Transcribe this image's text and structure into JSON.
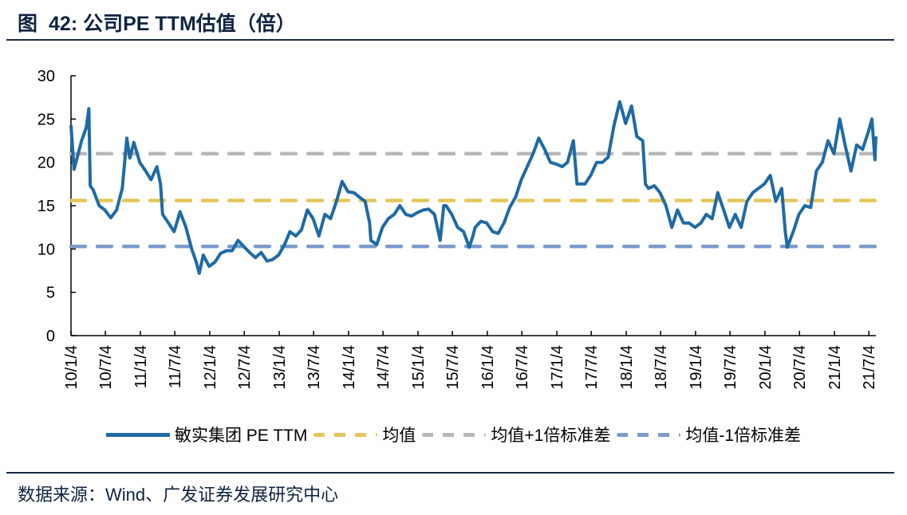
{
  "title": {
    "prefix": "图",
    "number": "42:",
    "text": "公司PE TTM估值（倍）"
  },
  "source": "数据来源：Wind、广发证券发展研究中心",
  "colors": {
    "pe": "#1f6aa5",
    "mean": "#e6c65a",
    "plus1": "#b8b8b8",
    "minus1": "#7b9bcb",
    "text": "#0f2340"
  },
  "chart_data": {
    "type": "line",
    "title": "公司PE TTM估值（倍）",
    "xlabel": "",
    "ylabel": "",
    "ylim": [
      0,
      30
    ],
    "yticks": [
      0,
      5,
      10,
      15,
      20,
      25,
      30
    ],
    "xlim": [
      "2010-01-04",
      "2021-08-10"
    ],
    "xticks": [
      {
        "date": "2010-01-04",
        "label": "10/1/4"
      },
      {
        "date": "2010-07-04",
        "label": "10/7/4"
      },
      {
        "date": "2011-01-04",
        "label": "11/1/4"
      },
      {
        "date": "2011-07-04",
        "label": "11/7/4"
      },
      {
        "date": "2012-01-04",
        "label": "12/1/4"
      },
      {
        "date": "2012-07-04",
        "label": "12/7/4"
      },
      {
        "date": "2013-01-04",
        "label": "13/1/4"
      },
      {
        "date": "2013-07-04",
        "label": "13/7/4"
      },
      {
        "date": "2014-01-04",
        "label": "14/1/4"
      },
      {
        "date": "2014-07-04",
        "label": "14/7/4"
      },
      {
        "date": "2015-01-04",
        "label": "15/1/4"
      },
      {
        "date": "2015-07-04",
        "label": "15/7/4"
      },
      {
        "date": "2016-01-04",
        "label": "16/1/4"
      },
      {
        "date": "2016-07-04",
        "label": "16/7/4"
      },
      {
        "date": "2017-01-04",
        "label": "17/1/4"
      },
      {
        "date": "2017-07-04",
        "label": "17/7/4"
      },
      {
        "date": "2018-01-04",
        "label": "18/1/4"
      },
      {
        "date": "2018-07-04",
        "label": "18/7/4"
      },
      {
        "date": "2019-01-04",
        "label": "19/1/4"
      },
      {
        "date": "2019-07-04",
        "label": "19/7/4"
      },
      {
        "date": "2020-01-04",
        "label": "20/1/4"
      },
      {
        "date": "2020-07-04",
        "label": "20/7/4"
      },
      {
        "date": "2021-01-04",
        "label": "21/1/4"
      },
      {
        "date": "2021-07-04",
        "label": "21/7/4"
      }
    ],
    "legend_position": "bottom",
    "grid": false,
    "series": [
      {
        "name": "敏实集团 PE TTM",
        "style": "solid",
        "color": "#1f6aa5",
        "points": [
          [
            "2010-01-04",
            24.3
          ],
          [
            "2010-01-20",
            19.2
          ],
          [
            "2010-02-05",
            20.5
          ],
          [
            "2010-03-01",
            22.5
          ],
          [
            "2010-03-25",
            24
          ],
          [
            "2010-04-08",
            26.2
          ],
          [
            "2010-04-15",
            17.3
          ],
          [
            "2010-05-01",
            16.8
          ],
          [
            "2010-06-01",
            15
          ],
          [
            "2010-07-01",
            14.5
          ],
          [
            "2010-08-01",
            13.6
          ],
          [
            "2010-09-01",
            14.5
          ],
          [
            "2010-10-01",
            17
          ],
          [
            "2010-10-25",
            22.8
          ],
          [
            "2010-11-10",
            20.5
          ],
          [
            "2010-12-01",
            22.3
          ],
          [
            "2011-01-01",
            20
          ],
          [
            "2011-02-01",
            19
          ],
          [
            "2011-03-01",
            18
          ],
          [
            "2011-04-01",
            19.5
          ],
          [
            "2011-04-20",
            17.5
          ],
          [
            "2011-05-01",
            14
          ],
          [
            "2011-06-01",
            13
          ],
          [
            "2011-07-01",
            12
          ],
          [
            "2011-08-01",
            14.3
          ],
          [
            "2011-09-01",
            12.5
          ],
          [
            "2011-10-01",
            10
          ],
          [
            "2011-10-25",
            8.5
          ],
          [
            "2011-11-10",
            7.2
          ],
          [
            "2011-12-01",
            9.3
          ],
          [
            "2012-01-01",
            8
          ],
          [
            "2012-02-01",
            8.5
          ],
          [
            "2012-03-01",
            9.5
          ],
          [
            "2012-04-01",
            9.8
          ],
          [
            "2012-05-01",
            9.8
          ],
          [
            "2012-06-01",
            11
          ],
          [
            "2012-07-01",
            10.3
          ],
          [
            "2012-08-01",
            9.6
          ],
          [
            "2012-09-01",
            9
          ],
          [
            "2012-10-01",
            9.6
          ],
          [
            "2012-11-01",
            8.6
          ],
          [
            "2012-12-01",
            8.8
          ],
          [
            "2013-01-01",
            9.3
          ],
          [
            "2013-02-01",
            10.5
          ],
          [
            "2013-03-01",
            12
          ],
          [
            "2013-04-01",
            11.5
          ],
          [
            "2013-05-01",
            12.2
          ],
          [
            "2013-06-01",
            14.5
          ],
          [
            "2013-07-01",
            13.5
          ],
          [
            "2013-08-01",
            11.5
          ],
          [
            "2013-09-01",
            14
          ],
          [
            "2013-10-01",
            13.5
          ],
          [
            "2013-11-01",
            15.5
          ],
          [
            "2013-12-01",
            17.8
          ],
          [
            "2014-01-01",
            16.6
          ],
          [
            "2014-02-01",
            16.5
          ],
          [
            "2014-03-01",
            16
          ],
          [
            "2014-04-01",
            15.5
          ],
          [
            "2014-04-25",
            13
          ],
          [
            "2014-05-01",
            11
          ],
          [
            "2014-06-01",
            10.5
          ],
          [
            "2014-07-01",
            12.5
          ],
          [
            "2014-08-01",
            13.5
          ],
          [
            "2014-09-01",
            14
          ],
          [
            "2014-10-01",
            15
          ],
          [
            "2014-11-01",
            14
          ],
          [
            "2014-12-01",
            13.8
          ],
          [
            "2015-01-01",
            14.2
          ],
          [
            "2015-02-01",
            14.5
          ],
          [
            "2015-03-01",
            14.6
          ],
          [
            "2015-04-01",
            14
          ],
          [
            "2015-05-01",
            11
          ],
          [
            "2015-05-20",
            15
          ],
          [
            "2015-06-01",
            15
          ],
          [
            "2015-07-01",
            14
          ],
          [
            "2015-08-01",
            12.5
          ],
          [
            "2015-09-01",
            12
          ],
          [
            "2015-10-01",
            10.2
          ],
          [
            "2015-10-20",
            11.5
          ],
          [
            "2015-11-01",
            12.5
          ],
          [
            "2015-12-01",
            13.2
          ],
          [
            "2016-01-01",
            13
          ],
          [
            "2016-02-01",
            12
          ],
          [
            "2016-03-01",
            11.8
          ],
          [
            "2016-04-01",
            13
          ],
          [
            "2016-05-01",
            14.8
          ],
          [
            "2016-06-01",
            16
          ],
          [
            "2016-07-01",
            18
          ],
          [
            "2016-08-01",
            19.5
          ],
          [
            "2016-09-01",
            21
          ],
          [
            "2016-10-01",
            22.8
          ],
          [
            "2016-11-01",
            21.5
          ],
          [
            "2016-12-01",
            20
          ],
          [
            "2017-01-01",
            19.8
          ],
          [
            "2017-02-01",
            19.5
          ],
          [
            "2017-03-01",
            20
          ],
          [
            "2017-04-01",
            22.5
          ],
          [
            "2017-04-20",
            17.5
          ],
          [
            "2017-05-01",
            17.5
          ],
          [
            "2017-06-01",
            17.5
          ],
          [
            "2017-07-01",
            18.5
          ],
          [
            "2017-08-01",
            20
          ],
          [
            "2017-09-01",
            20
          ],
          [
            "2017-10-01",
            20.6
          ],
          [
            "2017-11-01",
            24.3
          ],
          [
            "2017-12-01",
            27
          ],
          [
            "2018-01-01",
            24.5
          ],
          [
            "2018-02-01",
            26.5
          ],
          [
            "2018-03-01",
            23
          ],
          [
            "2018-04-01",
            22.5
          ],
          [
            "2018-04-15",
            17.5
          ],
          [
            "2018-05-01",
            17
          ],
          [
            "2018-06-01",
            17.3
          ],
          [
            "2018-07-01",
            16.5
          ],
          [
            "2018-08-01",
            15
          ],
          [
            "2018-09-01",
            12.5
          ],
          [
            "2018-10-01",
            14.5
          ],
          [
            "2018-11-01",
            13
          ],
          [
            "2018-12-01",
            13
          ],
          [
            "2019-01-01",
            12.5
          ],
          [
            "2019-02-01",
            13
          ],
          [
            "2019-03-01",
            14
          ],
          [
            "2019-04-01",
            13.5
          ],
          [
            "2019-05-01",
            16.5
          ],
          [
            "2019-06-01",
            14.5
          ],
          [
            "2019-07-01",
            12.5
          ],
          [
            "2019-08-01",
            14
          ],
          [
            "2019-09-01",
            12.5
          ],
          [
            "2019-10-01",
            15.5
          ],
          [
            "2019-11-01",
            16.5
          ],
          [
            "2019-12-01",
            17
          ],
          [
            "2020-01-01",
            17.5
          ],
          [
            "2020-02-01",
            18.5
          ],
          [
            "2020-03-01",
            15.5
          ],
          [
            "2020-04-01",
            17
          ],
          [
            "2020-04-20",
            12
          ],
          [
            "2020-05-01",
            10.2
          ],
          [
            "2020-06-01",
            12
          ],
          [
            "2020-07-01",
            14
          ],
          [
            "2020-08-01",
            15
          ],
          [
            "2020-09-01",
            14.8
          ],
          [
            "2020-10-01",
            19
          ],
          [
            "2020-11-01",
            20
          ],
          [
            "2020-12-01",
            22.5
          ],
          [
            "2021-01-01",
            21
          ],
          [
            "2021-02-01",
            25
          ],
          [
            "2021-03-01",
            22
          ],
          [
            "2021-04-01",
            19
          ],
          [
            "2021-05-01",
            22
          ],
          [
            "2021-06-01",
            21.5
          ],
          [
            "2021-07-01",
            23.5
          ],
          [
            "2021-07-20",
            25
          ],
          [
            "2021-08-05",
            20.3
          ],
          [
            "2021-08-10",
            23
          ]
        ]
      },
      {
        "name": "均值",
        "style": "dashed",
        "color": "#e6c65a",
        "value": 15.6
      },
      {
        "name": "均值+1倍标准差",
        "style": "dashed",
        "color": "#b8b8b8",
        "value": 21.0
      },
      {
        "name": "均值-1倍标准差",
        "style": "dashed",
        "color": "#7b9bcb",
        "value": 10.3
      }
    ]
  }
}
